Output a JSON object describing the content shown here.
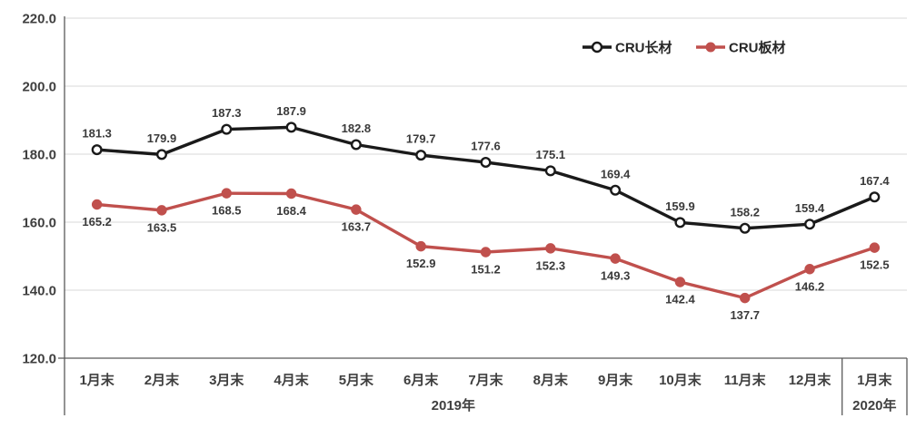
{
  "chart_data": {
    "type": "line",
    "categories": [
      "1月末",
      "2月末",
      "3月末",
      "4月末",
      "5月末",
      "6月末",
      "7月末",
      "8月末",
      "9月末",
      "10月末",
      "11月末",
      "12月末",
      "1月末"
    ],
    "category_groups": [
      {
        "label": "2019年",
        "from": 0,
        "to": 11
      },
      {
        "label": "2020年",
        "from": 12,
        "to": 12
      }
    ],
    "series": [
      {
        "name": "CRU长材",
        "color": "#1a1a1a",
        "marker": "open-circle",
        "data_label_position": "above",
        "values": [
          181.3,
          179.9,
          187.3,
          187.9,
          182.8,
          179.7,
          177.6,
          175.1,
          169.4,
          159.9,
          158.2,
          159.4,
          167.4
        ]
      },
      {
        "name": "CRU板材",
        "color": "#c0504d",
        "marker": "filled-circle",
        "data_label_position": "below",
        "values": [
          165.2,
          163.5,
          168.5,
          168.4,
          163.7,
          152.9,
          151.2,
          152.3,
          149.3,
          142.4,
          137.7,
          146.2,
          152.5
        ]
      }
    ],
    "y_axis": {
      "min": 120,
      "max": 220,
      "step": 20,
      "ticks": [
        "120.0",
        "140.0",
        "160.0",
        "180.0",
        "200.0",
        "220.0"
      ]
    },
    "grid": true,
    "legend_position": "top-right-inside"
  },
  "colors": {
    "grid": "#d9d9d9",
    "axis": "#595959",
    "text": "#3f3f3f",
    "background": "#ffffff"
  }
}
